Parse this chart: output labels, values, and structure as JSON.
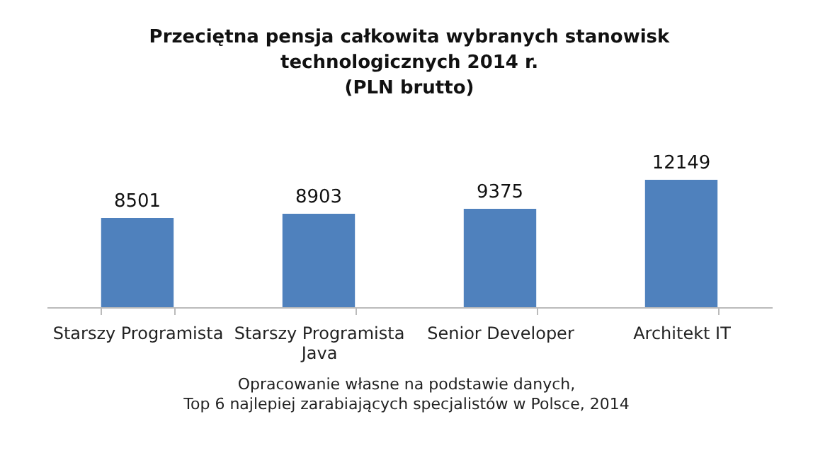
{
  "chart_data": {
    "type": "bar",
    "title": "Przeciętna pensja całkowita wybranych stanowisk technologicznych 2014 r.\n(PLN brutto)",
    "categories": [
      "Starszy Programista",
      "Starszy Programista Java",
      "Senior Developer",
      "Architekt IT"
    ],
    "values": [
      8501,
      8903,
      9375,
      12149
    ],
    "color": "#4f81bd",
    "data_labels": true,
    "annotations": [
      "Opracowanie własne na podstawie danych,",
      "Top 6 najlepiej zarabiających specjalistów w Polsce, 2014"
    ]
  }
}
